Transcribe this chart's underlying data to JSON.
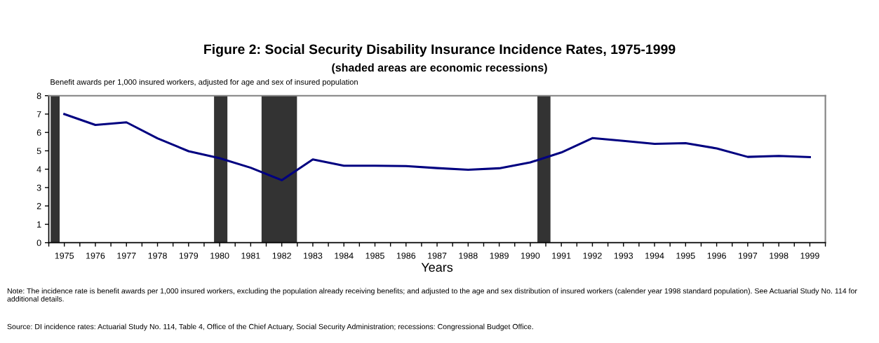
{
  "chart_data": {
    "type": "line",
    "title": "Figure 2: Social Security Disability Insurance Incidence Rates, 1975-1999",
    "subtitle": "(shaded areas are economic recessions)",
    "ylabel": "Benefit awards per 1,000 insured workers, adjusted for age and sex of insured population",
    "xlabel": "Years",
    "annotations": [
      "Note: The incidence rate is benefit awards per 1,000 insured workers, excluding the population already receiving benefits; and adjusted to the age and sex distribution of insured workers (calender year 1998 standard population). See Actuarial Study No. 114 for additional details.",
      "Source: DI incidence rates: Actuarial Study No. 114, Table 4, Office of the Chief Actuary, Social Security Administration; recessions: Congressional Budget Office."
    ],
    "x": [
      1975,
      1976,
      1977,
      1978,
      1979,
      1980,
      1981,
      1982,
      1983,
      1984,
      1985,
      1986,
      1987,
      1988,
      1989,
      1990,
      1991,
      1992,
      1993,
      1994,
      1995,
      1996,
      1997,
      1998,
      1999
    ],
    "series": [
      {
        "color": "#000080",
        "values": [
          7.0,
          6.41,
          6.55,
          5.68,
          4.98,
          4.6,
          4.08,
          3.4,
          4.53,
          4.19,
          4.19,
          4.17,
          4.06,
          3.97,
          4.05,
          4.37,
          4.91,
          5.69,
          5.54,
          5.38,
          5.42,
          5.13,
          4.67,
          4.72,
          4.66
        ]
      }
    ],
    "bands": [
      {
        "axis": "x",
        "from": 1974.56,
        "to": 1974.85,
        "color": "#333333"
      },
      {
        "axis": "x",
        "from": 1979.82,
        "to": 1980.25,
        "color": "#333333"
      },
      {
        "axis": "x",
        "from": 1981.35,
        "to": 1982.49,
        "color": "#333333"
      },
      {
        "axis": "x",
        "from": 1990.23,
        "to": 1990.65,
        "color": "#333333"
      }
    ],
    "xlim": [
      1974.5,
      1999.5
    ],
    "xticks": [
      {
        "value": 1974.5,
        "label": null
      },
      1975,
      {
        "value": 1975.5,
        "label": null
      },
      1976,
      {
        "value": 1976.5,
        "label": null
      },
      1977,
      {
        "value": 1977.5,
        "label": null
      },
      1978,
      {
        "value": 1978.5,
        "label": null
      },
      1979,
      {
        "value": 1979.5,
        "label": null
      },
      1980,
      {
        "value": 1980.5,
        "label": null
      },
      1981,
      {
        "value": 1981.5,
        "label": null
      },
      1982,
      {
        "value": 1982.5,
        "label": null
      },
      1983,
      {
        "value": 1983.5,
        "label": null
      },
      1984,
      {
        "value": 1984.5,
        "label": null
      },
      1985,
      {
        "value": 1985.5,
        "label": null
      },
      1986,
      {
        "value": 1986.5,
        "label": null
      },
      1987,
      {
        "value": 1987.5,
        "label": null
      },
      1988,
      {
        "value": 1988.5,
        "label": null
      },
      1989,
      {
        "value": 1989.5,
        "label": null
      },
      1990,
      {
        "value": 1990.5,
        "label": null
      },
      1991,
      {
        "value": 1991.5,
        "label": null
      },
      1992,
      {
        "value": 1992.5,
        "label": null
      },
      1993,
      {
        "value": 1993.5,
        "label": null
      },
      1994,
      {
        "value": 1994.5,
        "label": null
      },
      1995,
      {
        "value": 1995.5,
        "label": null
      },
      1996,
      {
        "value": 1996.5,
        "label": null
      },
      1997,
      {
        "value": 1997.5,
        "label": null
      },
      1998,
      {
        "value": 1998.5,
        "label": null
      },
      1999,
      {
        "value": 1999.5,
        "label": null
      }
    ],
    "ylim": [
      0,
      8
    ],
    "yticks": [
      0,
      1,
      2,
      3,
      4,
      5,
      6,
      7,
      8
    ],
    "grid": false,
    "line_style": "solid",
    "marker": "none"
  }
}
